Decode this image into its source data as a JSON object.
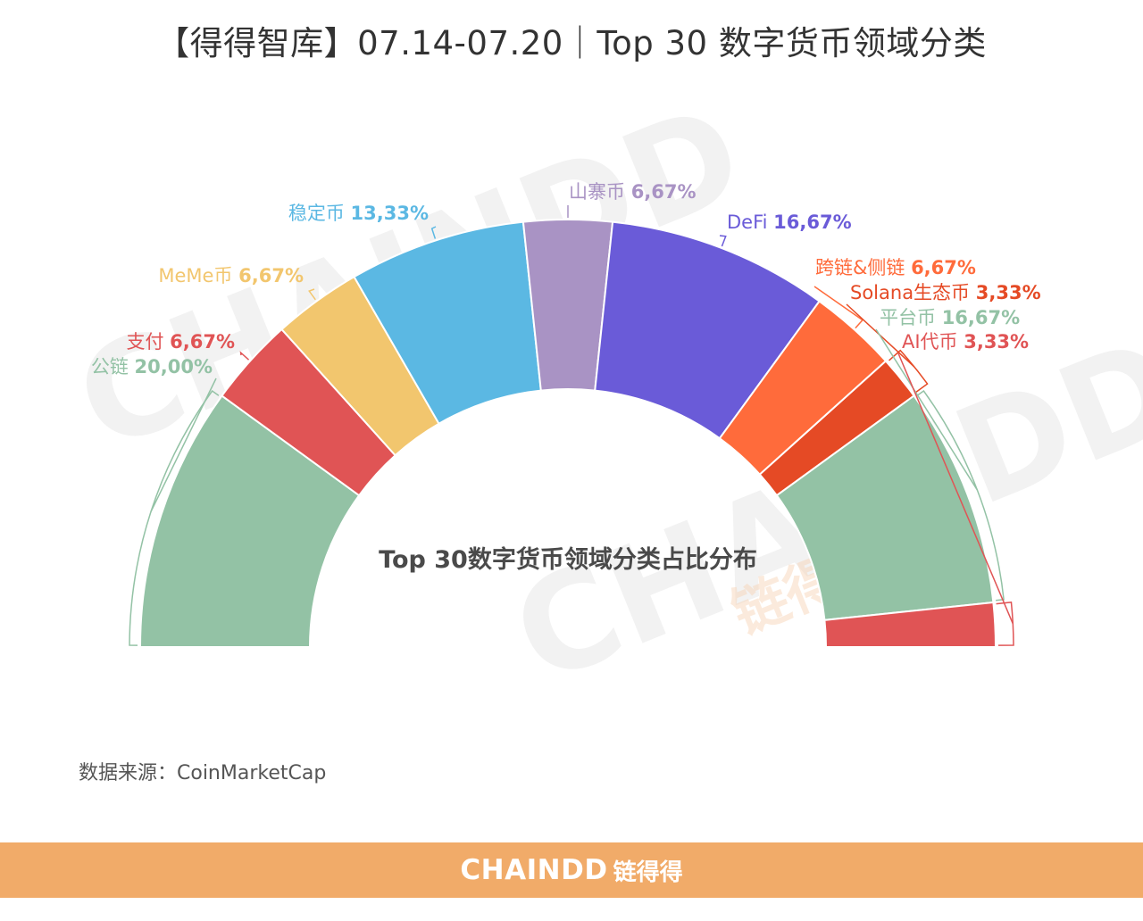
{
  "page": {
    "title": "【得得智库】07.14-07.20｜Top 30 数字货币领域分类",
    "source": "数据来源：CoinMarketCap",
    "footer_brand": "CHAINDD",
    "footer_brand_cn": "链得得",
    "watermark": "CHAINDD",
    "watermark_cn": "链得得"
  },
  "colors": {
    "footer_bg": "#f1ab69",
    "watermark": "#eeeeee",
    "watermark_accent": "#f7d2b3"
  },
  "chart_data": {
    "type": "pie",
    "variant": "half-donut",
    "title": "Top 30数字货币领域分类占比分布",
    "slices": [
      {
        "label": "公链",
        "value_label": "20,00%",
        "value": 20.0,
        "color": "#93c2a5",
        "label_color": "#93c2a5"
      },
      {
        "label": "支付",
        "value_label": "6,67%",
        "value": 6.67,
        "color": "#e05455",
        "label_color": "#e05455"
      },
      {
        "label": "MeMe币",
        "value_label": "6,67%",
        "value": 6.67,
        "color": "#f2c66e",
        "label_color": "#f2c66e"
      },
      {
        "label": "稳定币",
        "value_label": "13,33%",
        "value": 13.33,
        "color": "#5bb8e3",
        "label_color": "#5bb8e3"
      },
      {
        "label": "山寨币",
        "value_label": "6,67%",
        "value": 6.67,
        "color": "#a993c4",
        "label_color": "#a993c4"
      },
      {
        "label": "DeFi",
        "value_label": "16,67%",
        "value": 16.67,
        "color": "#6a5bd8",
        "label_color": "#6a5bd8"
      },
      {
        "label": "跨链&侧链",
        "value_label": "6,67%",
        "value": 6.67,
        "color": "#ff6b3b",
        "label_color": "#ff6b3b"
      },
      {
        "label": "Solana生态币",
        "value_label": "3,33%",
        "value": 3.33,
        "color": "#e54a25",
        "label_color": "#e54a25"
      },
      {
        "label": "平台币",
        "value_label": "16,67%",
        "value": 16.67,
        "color": "#93c2a5",
        "label_color": "#93c2a5"
      },
      {
        "label": "AI代币",
        "value_label": "3,33%",
        "value": 3.33,
        "color": "#e05455",
        "label_color": "#e05455"
      }
    ]
  }
}
